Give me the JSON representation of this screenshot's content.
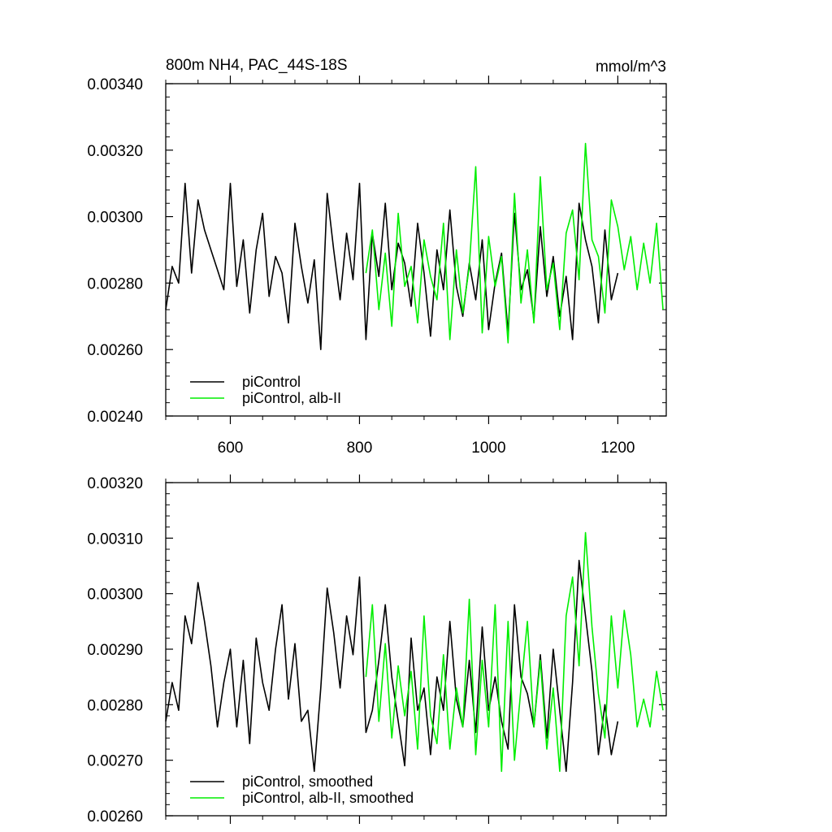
{
  "figure": {
    "background": "#ffffff",
    "colors": {
      "piControl": "#000000",
      "alb_II": "#00ee00"
    }
  },
  "chart_data": [
    {
      "type": "line",
      "title": "800m NH4, PAC_44S-18S",
      "units": "mmol/m^3",
      "xlim": [
        500,
        1275
      ],
      "ylim": [
        0.0024,
        0.0034
      ],
      "x_ticks": [
        600,
        800,
        1000,
        1200
      ],
      "x_tick_labels": [
        "600",
        "800",
        "1000",
        "1200"
      ],
      "y_ticks": [
        0.0024,
        0.0026,
        0.0028,
        0.003,
        0.0032,
        0.0034
      ],
      "y_tick_labels": [
        "0.00240",
        "0.00260",
        "0.00280",
        "0.00300",
        "0.00320",
        "0.00340"
      ],
      "legend_position": "bottom-left",
      "grid": false,
      "series": [
        {
          "name": "piControl",
          "color": "#000000",
          "x": [
            500,
            510,
            520,
            530,
            540,
            550,
            560,
            570,
            580,
            590,
            600,
            610,
            620,
            630,
            640,
            650,
            660,
            670,
            680,
            690,
            700,
            710,
            720,
            730,
            740,
            750,
            760,
            770,
            780,
            790,
            800,
            810,
            820,
            830,
            840,
            850,
            860,
            870,
            880,
            890,
            900,
            910,
            920,
            930,
            940,
            950,
            960,
            970,
            980,
            990,
            1000,
            1010,
            1020,
            1030,
            1040,
            1050,
            1060,
            1070,
            1080,
            1090,
            1100,
            1110,
            1120,
            1130,
            1140,
            1150,
            1160,
            1170,
            1180,
            1190,
            1200
          ],
          "y": [
            0.00272,
            0.00285,
            0.0028,
            0.0031,
            0.00283,
            0.00305,
            0.00296,
            0.0029,
            0.00284,
            0.00278,
            0.0031,
            0.00279,
            0.00293,
            0.00271,
            0.0029,
            0.00301,
            0.00276,
            0.00288,
            0.00283,
            0.00268,
            0.00298,
            0.00285,
            0.00274,
            0.00287,
            0.0026,
            0.00307,
            0.0029,
            0.00275,
            0.00295,
            0.00281,
            0.0031,
            0.00263,
            0.00295,
            0.00282,
            0.00304,
            0.00278,
            0.00292,
            0.00286,
            0.00273,
            0.00298,
            0.00283,
            0.00264,
            0.0029,
            0.00278,
            0.00302,
            0.00279,
            0.0027,
            0.00286,
            0.00275,
            0.00293,
            0.00266,
            0.0028,
            0.00289,
            0.00265,
            0.00301,
            0.00278,
            0.00284,
            0.00269,
            0.00297,
            0.00276,
            0.00288,
            0.0027,
            0.00282,
            0.00263,
            0.00304,
            0.00293,
            0.00285,
            0.00268,
            0.00296,
            0.00275,
            0.00283
          ]
        },
        {
          "name": "piControl, alb-II",
          "color": "#00ee00",
          "x": [
            810,
            820,
            830,
            840,
            850,
            860,
            870,
            880,
            890,
            900,
            910,
            920,
            930,
            940,
            950,
            960,
            970,
            980,
            990,
            1000,
            1010,
            1020,
            1030,
            1040,
            1050,
            1060,
            1070,
            1080,
            1090,
            1100,
            1110,
            1120,
            1130,
            1140,
            1150,
            1160,
            1170,
            1180,
            1190,
            1200,
            1210,
            1220,
            1230,
            1240,
            1250,
            1260,
            1270
          ],
          "y": [
            0.00283,
            0.00296,
            0.00272,
            0.00289,
            0.00267,
            0.00301,
            0.00279,
            0.00285,
            0.00268,
            0.00293,
            0.00282,
            0.00275,
            0.00298,
            0.00263,
            0.0029,
            0.00271,
            0.00285,
            0.00315,
            0.00265,
            0.00294,
            0.00279,
            0.00288,
            0.00262,
            0.00307,
            0.00274,
            0.0029,
            0.00268,
            0.00312,
            0.00278,
            0.00286,
            0.00266,
            0.00295,
            0.00302,
            0.00281,
            0.00322,
            0.00293,
            0.00288,
            0.00271,
            0.00305,
            0.00297,
            0.00284,
            0.00294,
            0.00278,
            0.00292,
            0.0028,
            0.00298,
            0.00272
          ]
        }
      ]
    },
    {
      "type": "line",
      "xlim": [
        500,
        1275
      ],
      "ylim": [
        0.0026,
        0.0032
      ],
      "x_ticks": [
        600,
        800,
        1000,
        1200
      ],
      "y_ticks": [
        0.0026,
        0.0027,
        0.0028,
        0.0029,
        0.003,
        0.0031,
        0.0032
      ],
      "y_tick_labels": [
        "0.00260",
        "0.00270",
        "0.00280",
        "0.00290",
        "0.00300",
        "0.00310",
        "0.00320"
      ],
      "legend_position": "bottom-left",
      "grid": false,
      "series": [
        {
          "name": "piControl, smoothed",
          "color": "#000000",
          "x": [
            500,
            510,
            520,
            530,
            540,
            550,
            560,
            570,
            580,
            590,
            600,
            610,
            620,
            630,
            640,
            650,
            660,
            670,
            680,
            690,
            700,
            710,
            720,
            730,
            740,
            750,
            760,
            770,
            780,
            790,
            800,
            810,
            820,
            830,
            840,
            850,
            860,
            870,
            880,
            890,
            900,
            910,
            920,
            930,
            940,
            950,
            960,
            970,
            980,
            990,
            1000,
            1010,
            1020,
            1030,
            1040,
            1050,
            1060,
            1070,
            1080,
            1090,
            1100,
            1110,
            1120,
            1130,
            1140,
            1150,
            1160,
            1170,
            1180,
            1190,
            1200
          ],
          "y": [
            0.00277,
            0.00284,
            0.00279,
            0.00296,
            0.00291,
            0.00302,
            0.00295,
            0.00287,
            0.00276,
            0.00284,
            0.0029,
            0.00276,
            0.00288,
            0.00273,
            0.00292,
            0.00284,
            0.00279,
            0.0029,
            0.00298,
            0.00281,
            0.00291,
            0.00277,
            0.00279,
            0.00268,
            0.00283,
            0.00301,
            0.00293,
            0.00283,
            0.00296,
            0.00289,
            0.00303,
            0.00275,
            0.00279,
            0.00288,
            0.00298,
            0.00285,
            0.00277,
            0.00269,
            0.00292,
            0.00279,
            0.00283,
            0.00271,
            0.00285,
            0.00279,
            0.00295,
            0.00281,
            0.00276,
            0.00288,
            0.00275,
            0.00294,
            0.00279,
            0.00285,
            0.00277,
            0.00272,
            0.00298,
            0.00285,
            0.00282,
            0.00276,
            0.00289,
            0.00274,
            0.0029,
            0.00279,
            0.00268,
            0.00284,
            0.00306,
            0.00296,
            0.00286,
            0.00271,
            0.0028,
            0.00271,
            0.00277
          ]
        },
        {
          "name": "piControl, alb-II, smoothed",
          "color": "#00ee00",
          "x": [
            810,
            820,
            830,
            840,
            850,
            860,
            870,
            880,
            890,
            900,
            910,
            920,
            930,
            940,
            950,
            960,
            970,
            980,
            990,
            1000,
            1010,
            1020,
            1030,
            1040,
            1050,
            1060,
            1070,
            1080,
            1090,
            1100,
            1110,
            1120,
            1130,
            1140,
            1150,
            1160,
            1170,
            1180,
            1190,
            1200,
            1210,
            1220,
            1230,
            1240,
            1250,
            1260,
            1270
          ],
          "y": [
            0.00285,
            0.00298,
            0.00277,
            0.00291,
            0.00274,
            0.00287,
            0.00278,
            0.00286,
            0.00272,
            0.00296,
            0.00278,
            0.00273,
            0.00289,
            0.00272,
            0.00283,
            0.00276,
            0.00299,
            0.00271,
            0.00288,
            0.00276,
            0.00298,
            0.00268,
            0.00295,
            0.0027,
            0.00283,
            0.00295,
            0.00276,
            0.00288,
            0.00272,
            0.00283,
            0.00268,
            0.00296,
            0.00303,
            0.00287,
            0.00311,
            0.00294,
            0.00282,
            0.00274,
            0.00296,
            0.00283,
            0.00297,
            0.00289,
            0.00276,
            0.00281,
            0.00276,
            0.00286,
            0.00279
          ]
        }
      ]
    }
  ]
}
